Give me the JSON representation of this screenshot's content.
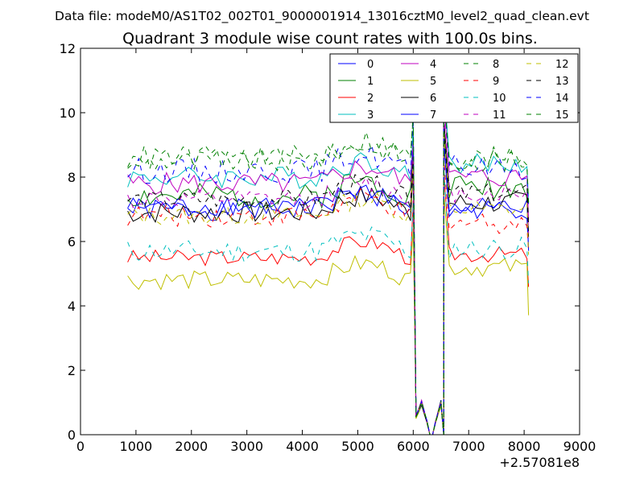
{
  "header": {
    "data_file": "Data file: modeM0/AS1T02_002T01_9000001914_13016cztM0_level2_quad_clean.evt"
  },
  "chart_data": {
    "type": "line",
    "title": "Quadrant 3 module wise count rates with 100.0s bins.",
    "xlabel": "",
    "ylabel": "",
    "x_offset_label": "+2.57081e8",
    "xlim": [
      0,
      9000
    ],
    "ylim": [
      0,
      12
    ],
    "xticks": [
      0,
      1000,
      2000,
      3000,
      4000,
      5000,
      6000,
      7000,
      8000,
      9000
    ],
    "yticks": [
      0,
      2,
      4,
      6,
      8,
      10,
      12
    ],
    "legend_position": "top-right",
    "gap_shape": {
      "x": [
        6000,
        6050,
        6150,
        6250,
        6300,
        6350,
        6400,
        6500,
        6550
      ],
      "y": [
        0,
        0.5,
        0.9,
        0.35,
        0,
        0,
        0.35,
        0.9,
        0
      ]
    },
    "series": [
      {
        "name": "0",
        "color": "#0000ff",
        "dash": false,
        "base_left": 7.0,
        "base_right": 7.0,
        "noise": 0.35,
        "seed": 1
      },
      {
        "name": "1",
        "color": "#008000",
        "dash": false,
        "base_left": 7.4,
        "base_right": 7.7,
        "noise": 0.4,
        "seed": 2
      },
      {
        "name": "2",
        "color": "#ff0000",
        "dash": false,
        "base_left": 5.5,
        "base_right": 5.6,
        "noise": 0.25,
        "seed": 3
      },
      {
        "name": "3",
        "color": "#00bfbf",
        "dash": false,
        "base_left": 8.0,
        "base_right": 8.4,
        "noise": 0.35,
        "seed": 4
      },
      {
        "name": "4",
        "color": "#bf00bf",
        "dash": false,
        "base_left": 7.8,
        "base_right": 8.0,
        "noise": 0.35,
        "seed": 5
      },
      {
        "name": "5",
        "color": "#bfbf00",
        "dash": false,
        "base_left": 4.8,
        "base_right": 5.2,
        "noise": 0.3,
        "seed": 6
      },
      {
        "name": "6",
        "color": "#000000",
        "dash": false,
        "base_left": 6.9,
        "base_right": 7.2,
        "noise": 0.35,
        "seed": 7
      },
      {
        "name": "7",
        "color": "#0000ff",
        "dash": false,
        "base_left": 7.1,
        "base_right": 7.0,
        "noise": 0.3,
        "seed": 8
      },
      {
        "name": "8",
        "color": "#008000",
        "dash": true,
        "base_left": 8.5,
        "base_right": 8.6,
        "noise": 0.35,
        "seed": 9
      },
      {
        "name": "9",
        "color": "#ff0000",
        "dash": true,
        "base_left": 6.8,
        "base_right": 6.6,
        "noise": 0.35,
        "seed": 10
      },
      {
        "name": "10",
        "color": "#00bfbf",
        "dash": true,
        "base_left": 5.7,
        "base_right": 5.8,
        "noise": 0.35,
        "seed": 11
      },
      {
        "name": "11",
        "color": "#bf00bf",
        "dash": true,
        "base_left": 7.3,
        "base_right": 7.5,
        "noise": 0.3,
        "seed": 12
      },
      {
        "name": "12",
        "color": "#bfbf00",
        "dash": true,
        "base_left": 6.8,
        "base_right": 7.0,
        "noise": 0.3,
        "seed": 13
      },
      {
        "name": "13",
        "color": "#000000",
        "dash": true,
        "base_left": 7.3,
        "base_right": 7.5,
        "noise": 0.3,
        "seed": 14
      },
      {
        "name": "14",
        "color": "#0000ff",
        "dash": true,
        "base_left": 8.2,
        "base_right": 8.3,
        "noise": 0.4,
        "seed": 15
      },
      {
        "name": "15",
        "color": "#008000",
        "dash": true,
        "base_left": 8.6,
        "base_right": 8.5,
        "noise": 0.4,
        "seed": 16
      }
    ]
  }
}
